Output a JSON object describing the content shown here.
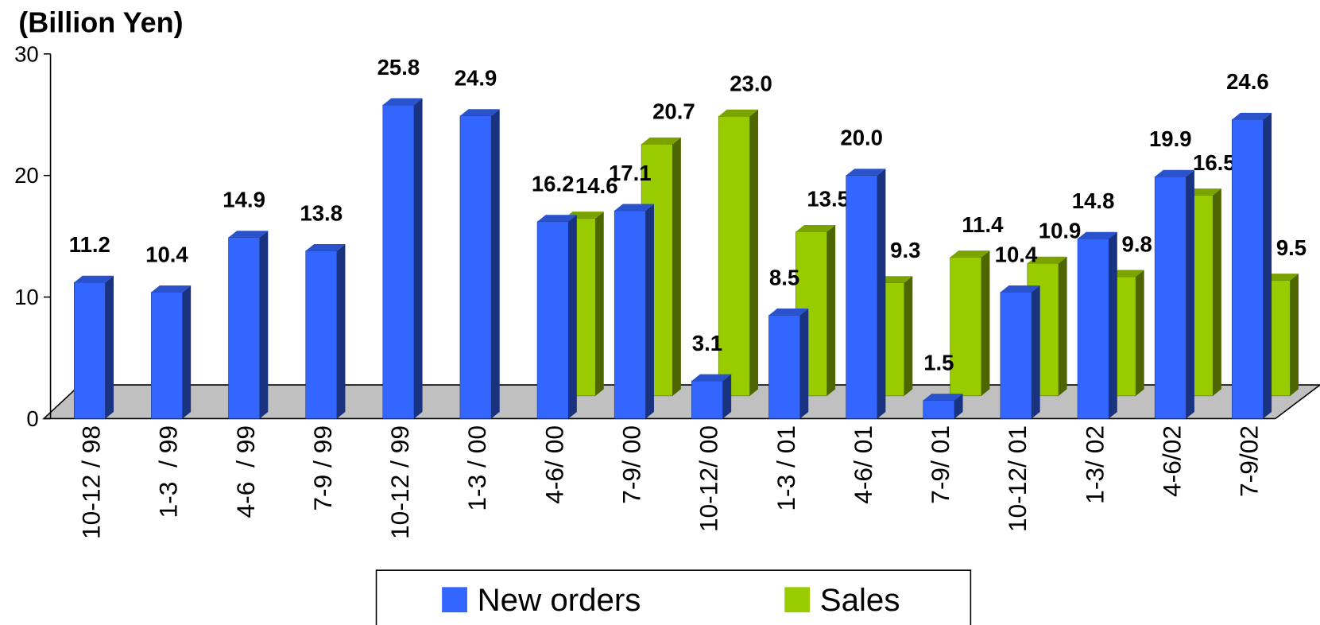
{
  "chart_data": {
    "type": "bar3d",
    "y_label": "(Billion Yen)",
    "categories": [
      "10-12 / 98",
      "1-3  / 99",
      "4-6  / 99",
      "7-9 / 99",
      "10-12 / 99",
      "1-3 / 00",
      "4-6/ 00",
      "7-9/ 00",
      "10-12/ 00",
      "1-3 / 01",
      "4-6/ 01",
      "7-9/ 01",
      "10-12/ 01",
      "1-3/ 02",
      "4-6/02",
      "7-9/02"
    ],
    "series": [
      {
        "name": "New orders",
        "color": "#3366ff",
        "values": [
          11.2,
          10.4,
          14.9,
          13.8,
          25.8,
          24.9,
          16.2,
          17.1,
          3.1,
          8.5,
          20.0,
          1.5,
          10.4,
          14.8,
          19.9,
          24.6
        ],
        "value_labels": [
          "11.2",
          "10.4",
          "14.9",
          "13.8",
          "25.8",
          "24.9",
          "16.2",
          "17.1",
          "3.1",
          "8.5",
          "20.0",
          "1.5",
          "10.4",
          "14.8",
          "19.9",
          "24.6"
        ]
      },
      {
        "name": "Sales",
        "color": "#99cc00",
        "values": [
          null,
          null,
          null,
          null,
          null,
          null,
          14.6,
          20.7,
          23.0,
          13.5,
          9.3,
          11.4,
          10.9,
          9.8,
          16.5,
          9.5
        ],
        "value_labels": [
          null,
          null,
          null,
          null,
          null,
          null,
          "14.6",
          "20.7",
          "23.0",
          "13.5",
          "9.3",
          "11.4",
          "10.9",
          "9.8",
          "16.5",
          "9.5"
        ]
      }
    ],
    "ylim": [
      0,
      30
    ],
    "yticks": [
      0,
      10,
      20,
      30
    ],
    "legend": "bottom"
  }
}
